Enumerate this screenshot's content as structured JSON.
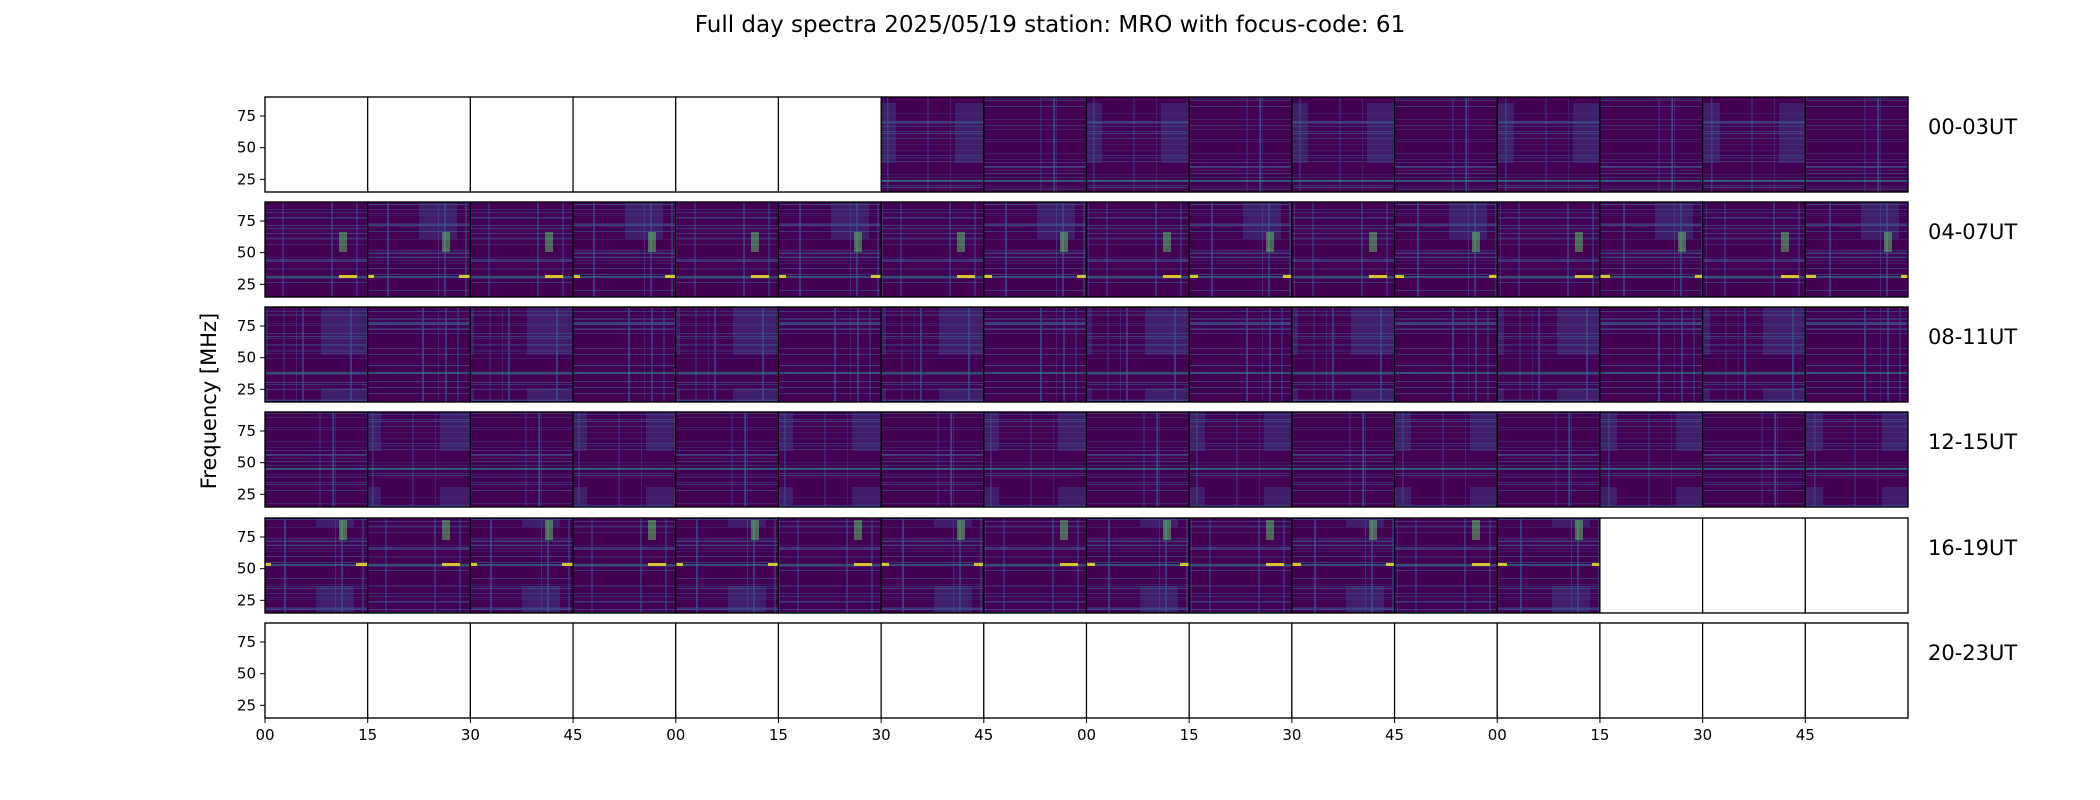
{
  "title": "Full day spectra 2025/05/19 station: MRO with focus-code: 61",
  "chart_data": {
    "type": "heatmap",
    "title": "Full day spectra 2025/05/19 station: MRO with focus-code: 61",
    "ylabel": "Frequency [MHz]",
    "xlabel": "",
    "ylim": [
      15,
      90
    ],
    "y_ticks": [
      25,
      50,
      75
    ],
    "x_ticks": [
      "00",
      "15",
      "30",
      "45",
      "00",
      "15",
      "30",
      "45",
      "00",
      "15",
      "30",
      "45",
      "00",
      "15",
      "30",
      "45"
    ],
    "colormap": "viridis",
    "colormap_colors": [
      "#440154",
      "#3b528b",
      "#21918c",
      "#5ec962",
      "#fde725"
    ],
    "empty_color": "#ffffff",
    "rows": [
      {
        "label": "00-03UT",
        "panels_with_data": [
          0,
          0,
          0,
          0,
          0,
          0,
          1,
          1,
          1,
          1,
          1,
          1,
          1,
          1,
          1,
          1
        ]
      },
      {
        "label": "04-07UT",
        "panels_with_data": [
          1,
          1,
          1,
          1,
          1,
          1,
          1,
          1,
          1,
          1,
          1,
          1,
          1,
          1,
          1,
          1
        ]
      },
      {
        "label": "08-11UT",
        "panels_with_data": [
          1,
          1,
          1,
          1,
          1,
          1,
          1,
          1,
          1,
          1,
          1,
          1,
          1,
          1,
          1,
          1
        ]
      },
      {
        "label": "12-15UT",
        "panels_with_data": [
          1,
          1,
          1,
          1,
          1,
          1,
          1,
          1,
          1,
          1,
          1,
          1,
          1,
          1,
          1,
          1
        ]
      },
      {
        "label": "16-19UT",
        "panels_with_data": [
          1,
          1,
          1,
          1,
          1,
          1,
          1,
          1,
          1,
          1,
          1,
          1,
          1,
          0,
          0,
          0
        ]
      },
      {
        "label": "20-23UT",
        "panels_with_data": [
          0,
          0,
          0,
          0,
          0,
          0,
          0,
          0,
          0,
          0,
          0,
          0,
          0,
          0,
          0,
          0
        ]
      }
    ]
  }
}
